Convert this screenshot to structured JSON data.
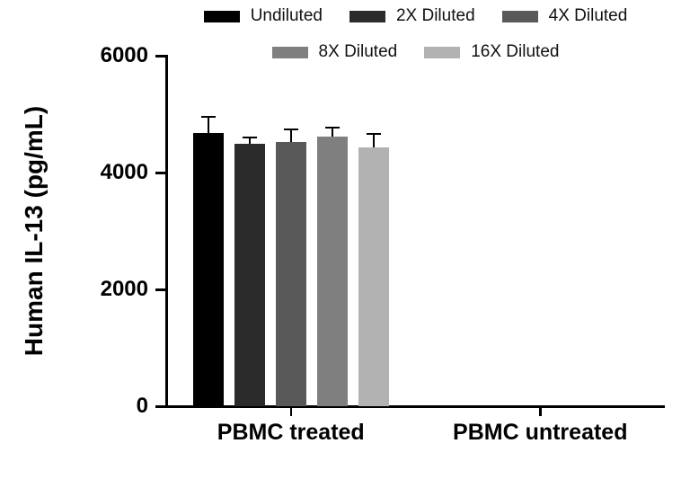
{
  "chart_data": {
    "type": "bar",
    "title": "",
    "xlabel": "",
    "ylabel": "Human IL-13 (pg/mL)",
    "ylim": [
      0,
      6000
    ],
    "yticks": [
      0,
      2000,
      4000,
      6000
    ],
    "grid": false,
    "legend_position": "top",
    "legend_rows": [
      3,
      2
    ],
    "categories": [
      "PBMC treated",
      "PBMC untreated"
    ],
    "series": [
      {
        "name": "Undiluted",
        "color": "#000000",
        "values": [
          4680,
          0
        ],
        "errors": [
          275,
          0
        ]
      },
      {
        "name": "2X Diluted",
        "color": "#2b2b2b",
        "values": [
          4490,
          0
        ],
        "errors": [
          110,
          0
        ]
      },
      {
        "name": "4X Diluted",
        "color": "#595959",
        "values": [
          4520,
          0
        ],
        "errors": [
          220,
          0
        ]
      },
      {
        "name": "8X Diluted",
        "color": "#7f7f7f",
        "values": [
          4620,
          0
        ],
        "errors": [
          150,
          0
        ]
      },
      {
        "name": "16X Diluted",
        "color": "#b2b2b2",
        "values": [
          4430,
          0
        ],
        "errors": [
          235,
          0
        ]
      }
    ],
    "error_bar_color": "#000000",
    "axis_color": "#000000"
  }
}
